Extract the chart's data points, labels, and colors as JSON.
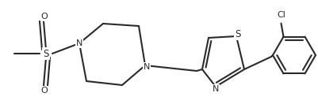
{
  "bg_color": "#ffffff",
  "line_color": "#2a2a2a",
  "lw": 1.5,
  "fs": 8.0,
  "fig_w": 4.02,
  "fig_h": 1.32,
  "dpi": 100,
  "xlim": [
    0,
    402
  ],
  "ylim": [
    0,
    132
  ]
}
